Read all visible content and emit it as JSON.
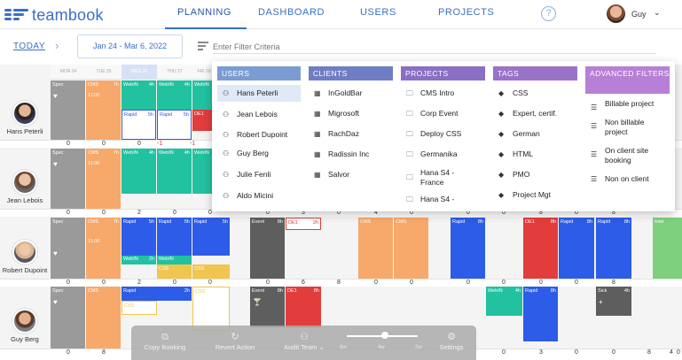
{
  "app": {
    "logo_text": "teambook"
  },
  "nav": {
    "tabs": [
      {
        "label": "PLANNING"
      },
      {
        "label": "DASHBOARD"
      },
      {
        "label": "USERS"
      },
      {
        "label": "PROJECTS"
      }
    ],
    "help": "?",
    "user_name": "Guy",
    "user_menu": "⌄"
  },
  "toolbar": {
    "today": "TODAY",
    "next": "›",
    "date_range": "Jan 24 - Mar 6, 2022",
    "filter_placeholder": "Enter Filter Criteria"
  },
  "calendar": {
    "day_headers": [
      "MON 24",
      "TUE 25",
      "WED 26",
      "THU 27",
      "FRI 28"
    ],
    "people": [
      {
        "name": "Hans Peterli"
      },
      {
        "name": "Jean Lebois"
      },
      {
        "name": "Robert Dupoint"
      },
      {
        "name": "Guy Berg"
      }
    ],
    "row_counts": [
      [
        "0",
        "0",
        "0",
        "-1",
        "-1"
      ],
      [
        "0",
        "0",
        "2",
        "0",
        "0",
        "0",
        "3",
        "0",
        "4",
        "0",
        "0",
        "0",
        "8",
        "0",
        "8"
      ],
      [
        "0",
        "0",
        "2",
        "0",
        "0",
        "0",
        "6",
        "8",
        "0",
        "0",
        "0",
        "0",
        "0",
        "0",
        "8"
      ],
      [
        "0",
        "8",
        "0",
        "3",
        "0",
        "0",
        "8",
        "4",
        "0"
      ]
    ],
    "blocks": {
      "spec": "Spec",
      "cms": "CMS",
      "cms_hrs": "7h",
      "time": "11:00",
      "webin": "WebIN",
      "hrs_4": "4h",
      "hrs_2": "2h",
      "hrs_5": "5h",
      "hrs_8": "8h",
      "rapid": "Rapid",
      "de1": "DE1",
      "event": "Event",
      "intern": "Inter",
      "sick": "Sick",
      "css": "CSS",
      "heart": "♥",
      "glass": "🍸",
      "plus": "+"
    }
  },
  "filter_dropdown": {
    "users": {
      "header": "USERS",
      "items": [
        "Hans Peterli",
        "Jean Lebois",
        "Robert Dupoint",
        "Guy Berg",
        "Julie Fenli",
        "Aldo Micini"
      ]
    },
    "clients": {
      "header": "CLIENTS",
      "items": [
        "InGoldBar",
        "Migrosoft",
        "RachDaz",
        "Radissin Inc",
        "Salvor"
      ]
    },
    "projects": {
      "header": "PROJECTS",
      "items": [
        "CMS Intro",
        "Corp Event",
        "Deploy CSS",
        "Germanika",
        "Hana S4 - France",
        "Hana S4 -"
      ]
    },
    "tags": {
      "header": "TAGS",
      "items": [
        "CSS",
        "Expert, certif.",
        "German",
        "HTML",
        "PMO",
        "Project Mgt"
      ]
    },
    "advanced": {
      "header": "ADVANCED FILTERS",
      "items": [
        "Billable project",
        "Non billable project",
        "On client site booking",
        "Non on client"
      ]
    }
  },
  "actionbar": {
    "copy": "Copy Booking",
    "revert": "Revert Action",
    "audit": "Audit Team",
    "zoom_labels": [
      "6w",
      "4w",
      "2w"
    ],
    "settings": "Settings"
  },
  "colors": {
    "accent": "#3a6fc9",
    "users_head": "#7a9cd3",
    "clients_head": "#6f7ec4",
    "projects_head": "#8a6fc4",
    "tags_head": "#9a73c9",
    "advanced_head": "#b77fd6",
    "spec": "#9a9a9a",
    "cms": "#f7a86b",
    "webin": "#22c1a0",
    "rapid": "#2d5ce8",
    "de1": "#e23c3c",
    "event": "#5e5e5e",
    "intern": "#7ed07e",
    "css": "#f0c64f"
  }
}
